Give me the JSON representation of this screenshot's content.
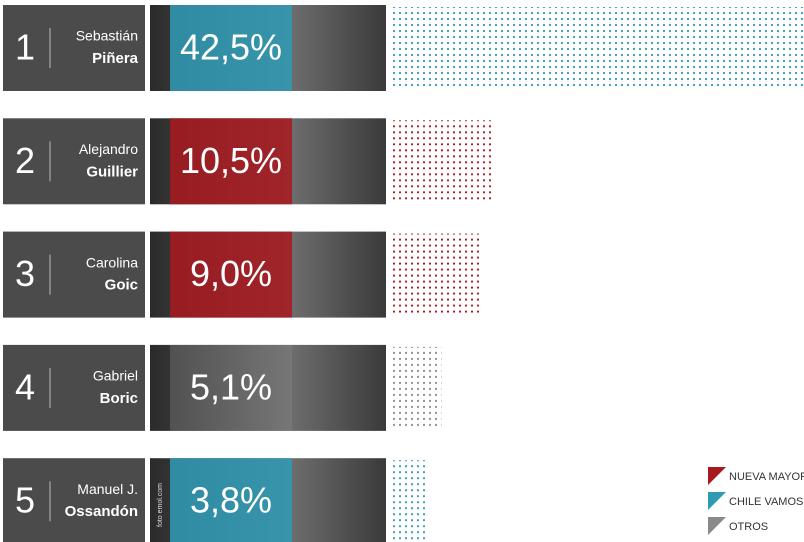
{
  "chart_data": {
    "type": "bar",
    "ranks": [
      1,
      2,
      3,
      4,
      5
    ],
    "first_names": [
      "Sebastián",
      "Alejandro",
      "Carolina",
      "Gabriel",
      "Manuel J."
    ],
    "categories": [
      "Piñera",
      "Guillier",
      "Goic",
      "Boric",
      "Ossandón"
    ],
    "values": [
      42.5,
      10.5,
      9.0,
      5.1,
      3.8
    ],
    "value_labels": [
      "42,5%",
      "10,5%",
      "9,0%",
      "5,1%",
      "3,8%"
    ],
    "colors": [
      "#2e9bb5",
      "#a8191f",
      "#a8191f",
      "#8a8a8a",
      "#2e9bb5"
    ],
    "legend": [
      {
        "name": "NUEVA MAYORÍA",
        "color": "#a8191f"
      },
      {
        "name": "CHILE VAMOS",
        "color": "#2e9bb5"
      },
      {
        "name": "OTROS",
        "color": "#8a8a8a"
      }
    ],
    "credit": "foto emol.com"
  }
}
